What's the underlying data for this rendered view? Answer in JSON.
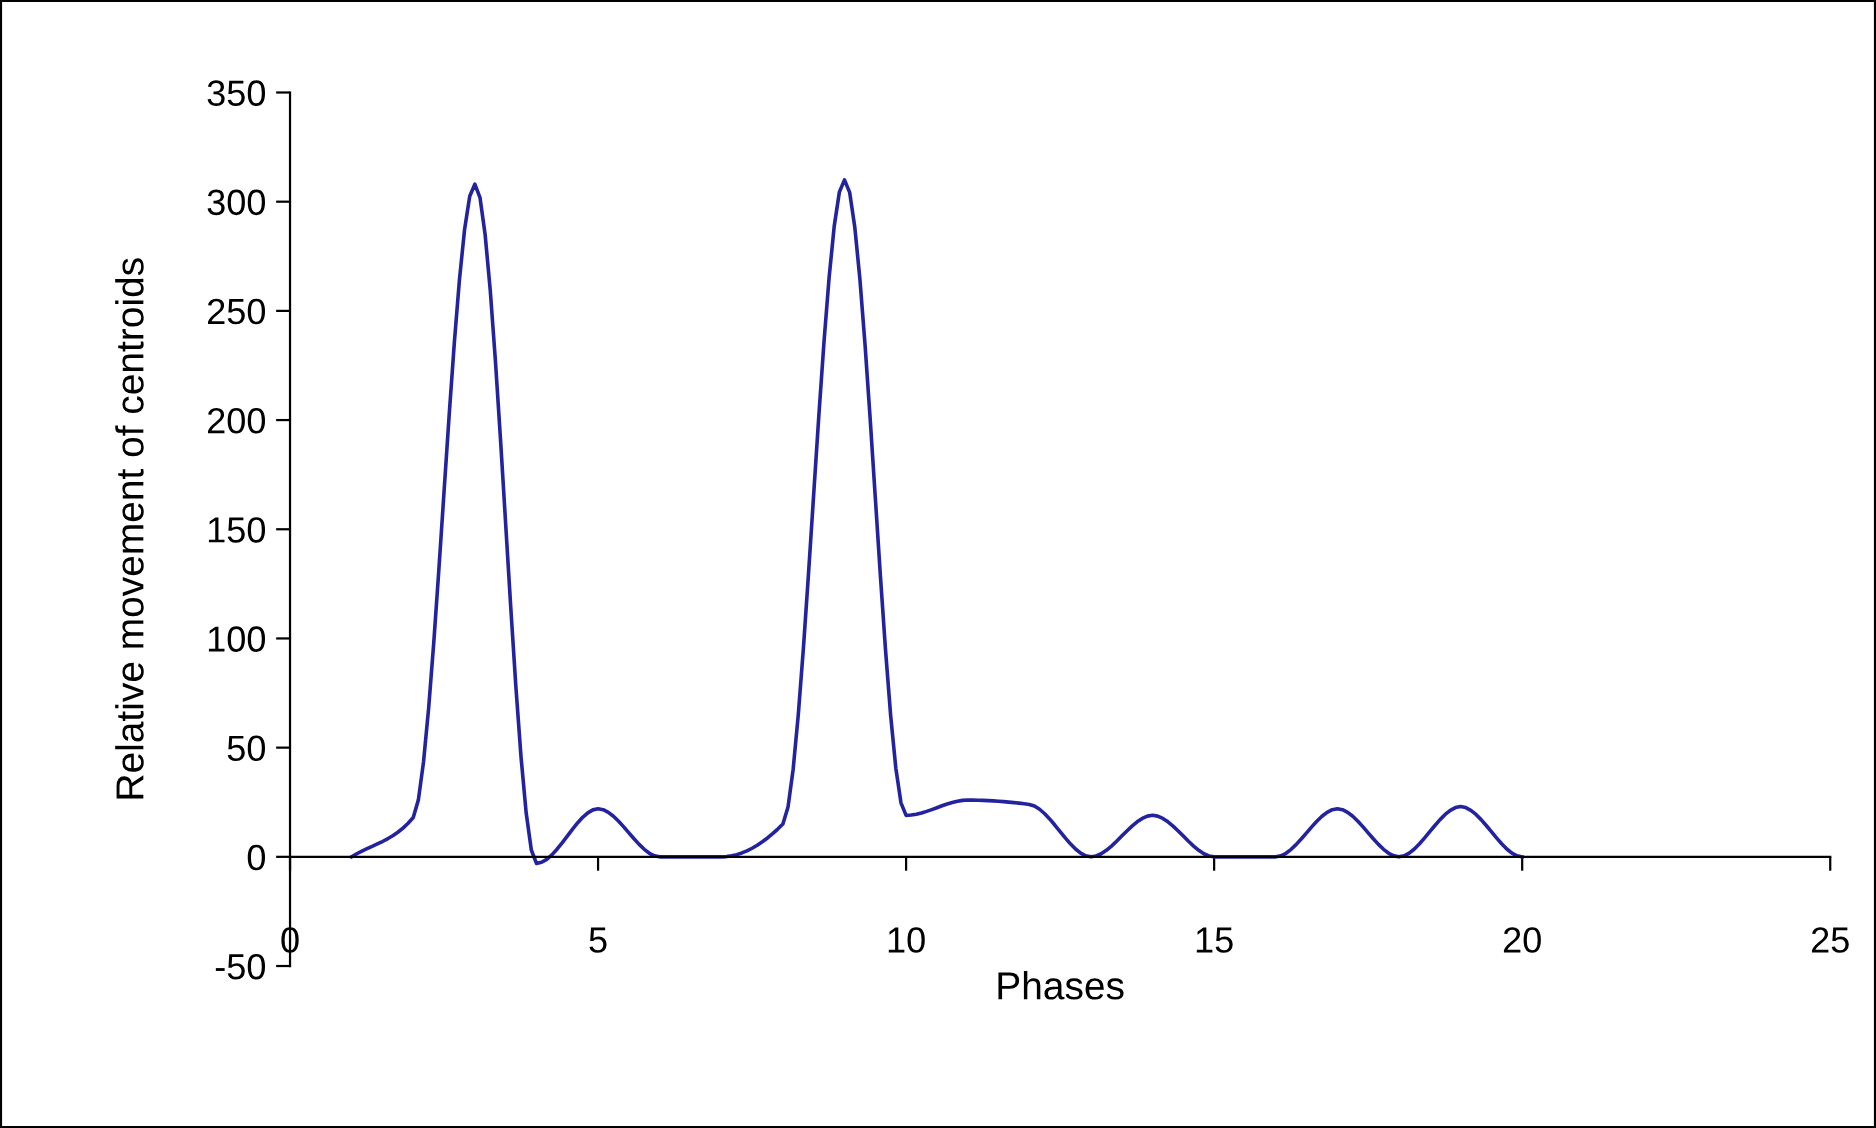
{
  "chart_data": {
    "type": "line",
    "xlabel": "Phases",
    "ylabel": "Relative movement of centroids",
    "x": [
      1,
      2,
      3,
      4,
      5,
      6,
      7,
      8,
      9,
      10,
      11,
      12,
      13,
      14,
      15,
      16,
      17,
      18,
      19,
      20
    ],
    "series": [
      {
        "color": "#2323a0",
        "values": [
          0,
          18,
          308,
          -3,
          22,
          0,
          0,
          15,
          310,
          19,
          26,
          24,
          0,
          19,
          0,
          0,
          22,
          0,
          23,
          0
        ]
      }
    ],
    "xlim": [
      0,
      25
    ],
    "xticks": [
      0,
      5,
      10,
      15,
      20,
      25
    ],
    "ylim": [
      -50,
      350
    ],
    "yticks": [
      -50,
      0,
      50,
      100,
      150,
      200,
      250,
      300,
      350
    ],
    "grid": false,
    "legend": false,
    "marker": "none",
    "line_style": "solid"
  }
}
